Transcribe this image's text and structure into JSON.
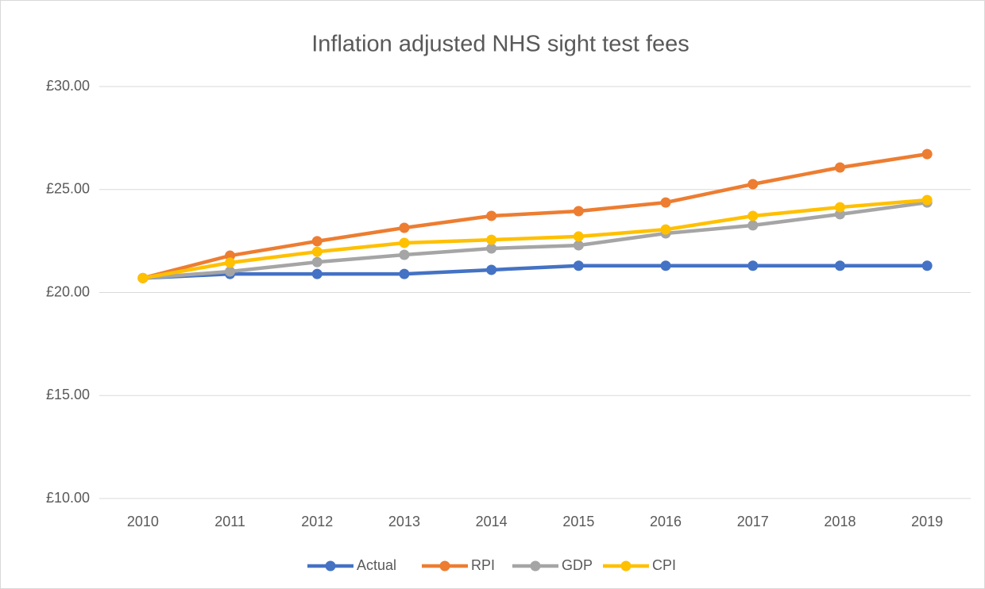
{
  "chart_data": {
    "type": "line",
    "title": "Inflation adjusted NHS sight test fees",
    "categories": [
      "2010",
      "2011",
      "2012",
      "2013",
      "2014",
      "2015",
      "2016",
      "2017",
      "2018",
      "2019"
    ],
    "series": [
      {
        "name": "Actual",
        "color": "#4472c4",
        "values": [
          20.7,
          20.9,
          20.9,
          20.9,
          21.1,
          21.3,
          21.3,
          21.3,
          21.3,
          21.3
        ]
      },
      {
        "name": "RPI",
        "color": "#ed7d31",
        "values": [
          20.7,
          21.79,
          22.49,
          23.14,
          23.72,
          23.95,
          24.37,
          25.26,
          26.07,
          26.72
        ]
      },
      {
        "name": "GDP",
        "color": "#a5a5a5",
        "values": [
          20.7,
          21.02,
          21.48,
          21.83,
          22.14,
          22.29,
          22.87,
          23.26,
          23.8,
          24.37
        ]
      },
      {
        "name": "CPI",
        "color": "#ffc000",
        "values": [
          20.7,
          21.45,
          21.98,
          22.41,
          22.56,
          22.72,
          23.06,
          23.72,
          24.14,
          24.49
        ]
      }
    ],
    "ylim": [
      10,
      30
    ],
    "yticks": [
      {
        "value": 10,
        "label": "£10.00"
      },
      {
        "value": 15,
        "label": "£15.00"
      },
      {
        "value": 20,
        "label": "£20.00"
      },
      {
        "value": 25,
        "label": "£25.00"
      },
      {
        "value": 30,
        "label": "£30.00"
      }
    ],
    "grid": true,
    "legend": "bottom"
  }
}
